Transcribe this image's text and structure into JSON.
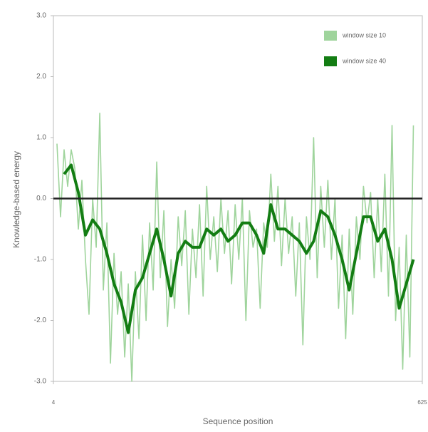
{
  "chart_data": {
    "type": "line",
    "xlabel": "Sequence position",
    "ylabel": "Knowledge-based energy",
    "xlim": [
      4,
      625
    ],
    "xticks": [
      4,
      625
    ],
    "ylim": [
      -3,
      3
    ],
    "yticks": [
      {
        "value": -3,
        "label": "-3.0"
      },
      {
        "value": -2,
        "label": "-2.0"
      },
      {
        "value": -1,
        "label": "-1.0"
      },
      {
        "value": 0,
        "label": "0.0"
      },
      {
        "value": 1,
        "label": "1.0"
      },
      {
        "value": 2,
        "label": "2.0"
      },
      {
        "value": 3,
        "label": "3.0"
      }
    ],
    "legend": "upper right",
    "series": [
      {
        "name": "window size 10",
        "color": "#9fd49c",
        "x": [
          10,
          16,
          22,
          28,
          34,
          40,
          46,
          52,
          58,
          64,
          70,
          76,
          82,
          88,
          94,
          100,
          106,
          112,
          118,
          124,
          130,
          136,
          142,
          148,
          154,
          160,
          166,
          172,
          178,
          184,
          190,
          196,
          202,
          208,
          214,
          220,
          226,
          232,
          238,
          244,
          250,
          256,
          262,
          268,
          274,
          280,
          286,
          292,
          298,
          304,
          310,
          316,
          322,
          328,
          334,
          340,
          346,
          352,
          358,
          364,
          370,
          376,
          382,
          388,
          394,
          400,
          406,
          412,
          418,
          424,
          430,
          436,
          442,
          448,
          454,
          460,
          466,
          472,
          478,
          484,
          490,
          496,
          502,
          508,
          514,
          520,
          526,
          532,
          538,
          544,
          550,
          556,
          562,
          568,
          574,
          580,
          586,
          592,
          598,
          604,
          610
        ],
        "values": [
          0.9,
          -0.3,
          0.8,
          0.2,
          0.8,
          0.5,
          -0.5,
          0.3,
          -1.0,
          -1.9,
          0.0,
          -0.8,
          1.4,
          -1.5,
          -0.4,
          -2.7,
          -0.9,
          -1.9,
          -1.2,
          -2.6,
          -1.4,
          -3.0,
          -1.2,
          -2.3,
          -0.6,
          -2.0,
          -0.4,
          -1.5,
          0.6,
          -1.3,
          -0.2,
          -2.1,
          -1.0,
          -1.8,
          -0.3,
          -1.1,
          -0.2,
          -1.9,
          -0.5,
          -1.3,
          -0.1,
          -1.6,
          0.2,
          -1.0,
          -0.3,
          -1.2,
          0.0,
          -0.9,
          -0.2,
          -1.4,
          -0.1,
          -1.0,
          0.0,
          -2.0,
          -0.2,
          -0.8,
          -0.5,
          -1.8,
          -0.4,
          -0.8,
          0.4,
          -0.7,
          0.2,
          -1.1,
          0.0,
          -0.9,
          -0.3,
          -1.6,
          -0.4,
          -2.4,
          -0.3,
          -1.0,
          1.0,
          -1.3,
          0.2,
          -0.8,
          0.3,
          -1.0,
          0.0,
          -1.8,
          -0.6,
          -2.3,
          -0.5,
          -1.9,
          -0.3,
          -1.0,
          0.2,
          -0.4,
          0.1,
          -1.3,
          0.0,
          -1.2,
          0.4,
          -1.6,
          1.2,
          -2.0,
          -0.8,
          -2.8,
          -0.6,
          -2.6,
          1.2
        ]
      },
      {
        "name": "window size 40",
        "color": "#137d13",
        "x": [
          22,
          34,
          46,
          58,
          70,
          82,
          94,
          106,
          118,
          130,
          142,
          154,
          166,
          178,
          190,
          202,
          214,
          226,
          238,
          250,
          262,
          274,
          286,
          298,
          310,
          322,
          334,
          346,
          358,
          370,
          382,
          394,
          406,
          418,
          430,
          442,
          454,
          466,
          478,
          490,
          502,
          514,
          526,
          538,
          550,
          562,
          574,
          586,
          598,
          610
        ],
        "values": [
          0.4,
          0.55,
          0.1,
          -0.6,
          -0.35,
          -0.5,
          -0.9,
          -1.4,
          -1.7,
          -2.2,
          -1.5,
          -1.3,
          -0.9,
          -0.5,
          -1.0,
          -1.6,
          -0.9,
          -0.7,
          -0.8,
          -0.8,
          -0.5,
          -0.6,
          -0.5,
          -0.7,
          -0.6,
          -0.4,
          -0.4,
          -0.6,
          -0.9,
          -0.1,
          -0.5,
          -0.5,
          -0.6,
          -0.7,
          -0.9,
          -0.7,
          -0.2,
          -0.3,
          -0.6,
          -1.0,
          -1.5,
          -0.9,
          -0.3,
          -0.3,
          -0.7,
          -0.5,
          -1.0,
          -1.8,
          -1.4,
          -1.0
        ]
      }
    ]
  }
}
